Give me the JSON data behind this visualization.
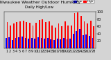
{
  "title": "Milwaukee Weather Outdoor Humidity",
  "subtitle": "Daily High/Low",
  "high_color": "#ff0000",
  "low_color": "#0000ff",
  "background_color": "#d4d4d4",
  "plot_bg_color": "#d4d4d4",
  "ylim": [
    0,
    100
  ],
  "bar_width": 0.4,
  "highs": [
    72,
    62,
    68,
    72,
    74,
    76,
    72,
    70,
    62,
    70,
    78,
    80,
    72,
    74,
    62,
    56,
    68,
    60,
    74,
    62,
    62,
    96,
    98,
    90,
    74,
    68,
    76,
    60
  ],
  "lows": [
    28,
    30,
    22,
    28,
    30,
    32,
    28,
    26,
    28,
    26,
    30,
    28,
    26,
    28,
    24,
    22,
    26,
    24,
    28,
    24,
    26,
    40,
    48,
    52,
    36,
    38,
    34,
    28
  ],
  "xlabels": [
    "1",
    "2",
    "3",
    "4",
    "5",
    "6",
    "7",
    "8",
    "9",
    "10",
    "11",
    "12",
    "13",
    "14",
    "15",
    "16",
    "17",
    "18",
    "19",
    "20",
    "21",
    "22",
    "23",
    "24",
    "25",
    "26",
    "27",
    "28"
  ],
  "xlabel_fontsize": 3.5,
  "ylabel_fontsize": 3.5,
  "title_fontsize": 4.5,
  "subtitle_fontsize": 4.0,
  "yticks": [
    20,
    40,
    60,
    80,
    100
  ],
  "legend_high": "High",
  "legend_low": "Low"
}
